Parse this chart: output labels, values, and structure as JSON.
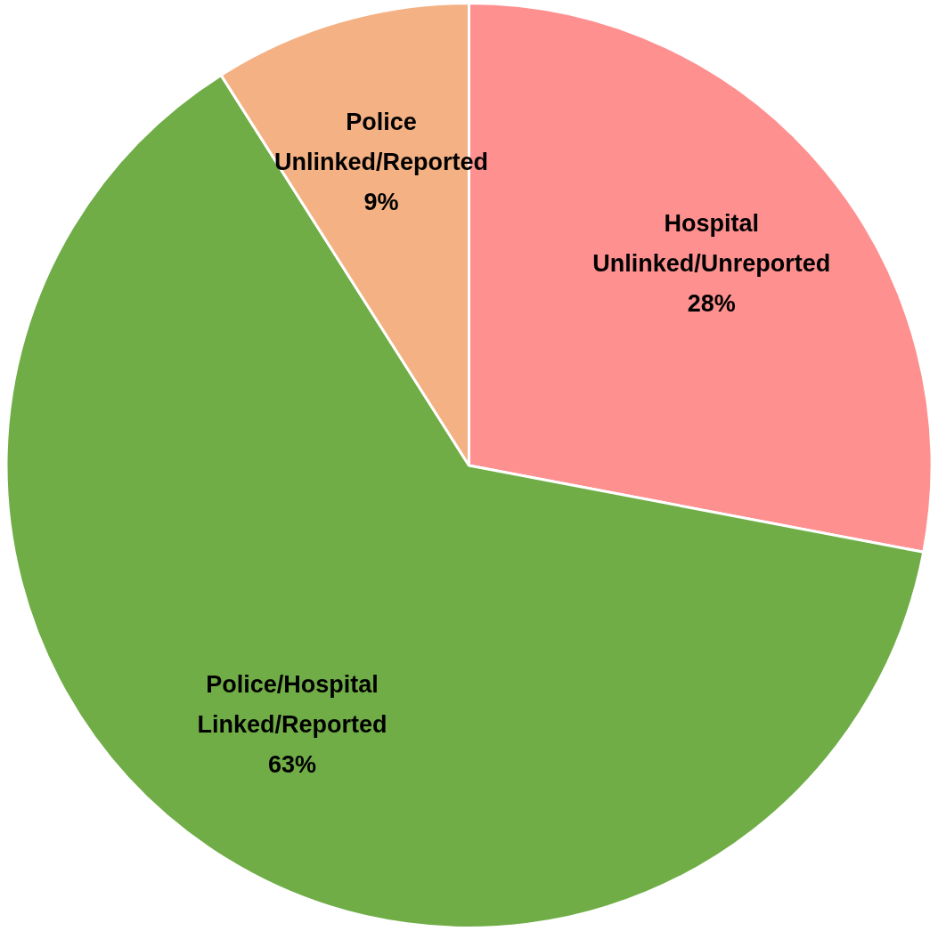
{
  "chart_data": {
    "type": "pie",
    "categories": [
      "Hospital Unlinked/Unreported",
      "Police/Hospital Linked/Reported",
      "Police Unlinked/Reported"
    ],
    "values": [
      28,
      63,
      9
    ],
    "colors": [
      "#ff9090",
      "#70ad47",
      "#f4b183"
    ],
    "value_labels": [
      "28%",
      "63%",
      "9%"
    ],
    "legend": false
  }
}
